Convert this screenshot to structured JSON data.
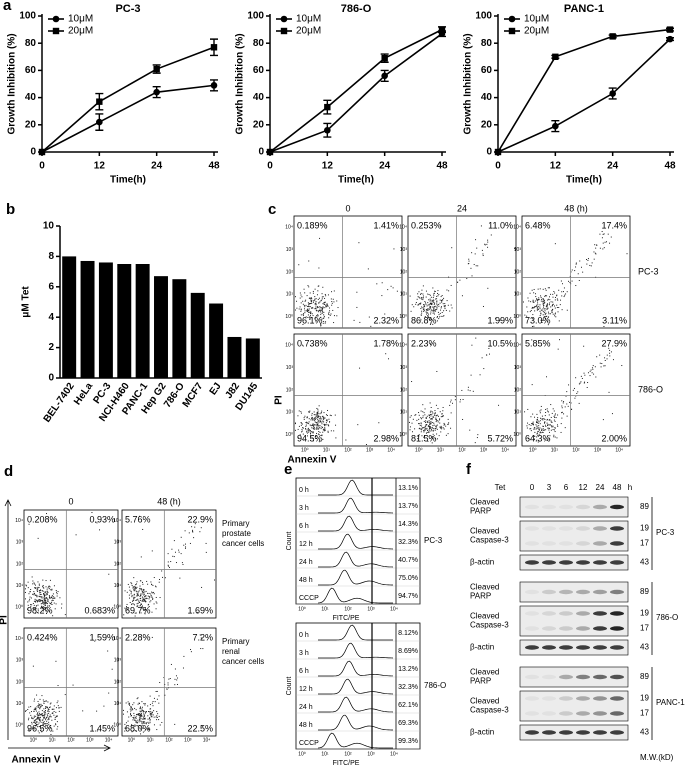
{
  "chart_data": [
    {
      "type": "line",
      "panel_label": "a",
      "title": "PC-3",
      "x_label": "Time(h)",
      "y_label": "Growth Inhibition (%)",
      "categories": [
        "0",
        "12",
        "24",
        "48"
      ],
      "ylim": [
        0,
        100
      ],
      "yticks": [
        0,
        20,
        40,
        60,
        80,
        100
      ],
      "legend": "top-left",
      "series": [
        {
          "name": "10μM",
          "color": "#000000",
          "marker": "circle",
          "values": [
            0,
            22,
            44,
            49
          ],
          "errors": [
            null,
            6,
            4,
            4
          ]
        },
        {
          "name": "20μM",
          "color": "#000000",
          "marker": "square",
          "values": [
            0,
            37,
            61,
            77
          ],
          "errors": [
            null,
            6,
            3,
            6
          ]
        }
      ]
    },
    {
      "type": "line",
      "title": "786-O",
      "x_label": "Time(h)",
      "y_label": "Growth Inhibition (%)",
      "categories": [
        "0",
        "12",
        "24",
        "48"
      ],
      "ylim": [
        0,
        100
      ],
      "yticks": [
        0,
        20,
        40,
        60,
        80,
        100
      ],
      "legend": "top-left",
      "series": [
        {
          "name": "10μM",
          "color": "#000000",
          "marker": "circle",
          "values": [
            0,
            16,
            56,
            87
          ],
          "errors": [
            null,
            5,
            4,
            2
          ]
        },
        {
          "name": "20μM",
          "color": "#000000",
          "marker": "square",
          "values": [
            0,
            33,
            69,
            90
          ],
          "errors": [
            null,
            5,
            3,
            2
          ]
        }
      ]
    },
    {
      "type": "line",
      "title": "PANC-1",
      "x_label": "Time(h)",
      "y_label": "Growth Inhibition (%)",
      "categories": [
        "0",
        "12",
        "24",
        "48"
      ],
      "ylim": [
        0,
        100
      ],
      "yticks": [
        0,
        20,
        40,
        60,
        80,
        100
      ],
      "legend": "top-left",
      "series": [
        {
          "name": "10μM",
          "color": "#000000",
          "marker": "circle",
          "values": [
            0,
            19,
            43,
            83
          ],
          "errors": [
            null,
            4,
            4,
            1
          ]
        },
        {
          "name": "20μM",
          "color": "#000000",
          "marker": "square",
          "values": [
            0,
            70,
            85,
            90
          ],
          "errors": [
            null,
            1,
            1,
            1
          ]
        }
      ]
    },
    {
      "type": "bar",
      "panel_label": "b",
      "y_label": "μM Tet",
      "categories": [
        "BEL-7402",
        "HeLa",
        "PC-3",
        "NCI-H460",
        "PANC-1",
        "Hep G2",
        "786-O",
        "MCF7",
        "EJ",
        "J82",
        "DU145"
      ],
      "values": [
        8.0,
        7.7,
        7.6,
        7.5,
        7.5,
        6.7,
        6.5,
        5.6,
        4.9,
        2.7,
        2.6
      ],
      "color": "#000000",
      "ylim": [
        0,
        10
      ],
      "yticks": [
        0,
        2,
        4,
        6,
        8,
        10
      ]
    }
  ],
  "flow_c": {
    "panel_label": "c",
    "columns": [
      "0",
      "24",
      "48 (h)"
    ],
    "y_label": "PI",
    "x_label": "Annexin V",
    "log_ticks": [
      "10⁰",
      "10¹",
      "10²",
      "10³",
      "10⁴"
    ],
    "rows": [
      {
        "label": "PC-3",
        "plots": [
          [
            "0.189%",
            "1.41%",
            "96.1%",
            "2.32%"
          ],
          [
            "0.253%",
            "11.0%",
            "86.8%",
            "1.99%"
          ],
          [
            "6.48%",
            "17.4%",
            "73.0%",
            "3.11%"
          ]
        ]
      },
      {
        "label": "786-O",
        "plots": [
          [
            "0.738%",
            "1.78%",
            "94.5%",
            "2.98%"
          ],
          [
            "2.23%",
            "10.5%",
            "81.5%",
            "5.72%"
          ],
          [
            "5.85%",
            "27.9%",
            "64.3%",
            "2.00%"
          ]
        ]
      }
    ]
  },
  "flow_d": {
    "panel_label": "d",
    "columns": [
      "0",
      "48 (h)"
    ],
    "y_label": "PI",
    "x_label": "Annexin V",
    "log_ticks": [
      "10⁰",
      "10¹",
      "10²",
      "10³",
      "10⁴"
    ],
    "rows": [
      {
        "label": [
          "Primary",
          "prostate",
          "cancer cells"
        ],
        "plots": [
          [
            "0.208%",
            "0.93%",
            "98.2%",
            "0.683%"
          ],
          [
            "5.76%",
            "22.9%",
            "69.7%",
            "1.69%"
          ]
        ]
      },
      {
        "label": [
          "Primary",
          "renal",
          "cancer cells"
        ],
        "plots": [
          [
            "0.424%",
            "1.59%",
            "96.5%",
            "1.45%"
          ],
          [
            "2.28%",
            "7.2%",
            "68.0%",
            "22.5%"
          ]
        ]
      }
    ]
  },
  "histogram_e": {
    "panel_label": "e",
    "y_label": "Count",
    "x_label": "FITC/PE",
    "log_ticks": [
      "10⁰",
      "10¹",
      "10²",
      "10³",
      "10⁴"
    ],
    "rows": [
      "0 h",
      "3 h",
      "6 h",
      "12 h",
      "24 h",
      "48 h",
      "CCCP"
    ],
    "groups": [
      {
        "label": "PC-3",
        "values": [
          "13.1%",
          "13.7%",
          "14.3%",
          "32.3%",
          "40.7%",
          "75.0%",
          "94.7%"
        ]
      },
      {
        "label": "786-O",
        "values": [
          "8.12%",
          "8.69%",
          "13.2%",
          "32.3%",
          "62.1%",
          "69.3%",
          "99.3%"
        ]
      }
    ]
  },
  "western_f": {
    "panel_label": "f",
    "treatment": "Tet",
    "lanes": [
      "0",
      "3",
      "6",
      "12",
      "24",
      "48"
    ],
    "unit": "h",
    "mw_label": "M.W.(kD)",
    "groups": [
      {
        "label": "PC-3",
        "blots": [
          {
            "label": [
              "Cleaved",
              "PARP"
            ],
            "mw": [
              89
            ]
          },
          {
            "label": [
              "Cleaved",
              "Caspase-3"
            ],
            "mw": [
              19,
              17
            ]
          },
          {
            "label": [
              "β-actin"
            ],
            "mw": [
              43
            ]
          }
        ]
      },
      {
        "label": "786-O",
        "blots": [
          {
            "label": [
              "Cleaved",
              "PARP"
            ],
            "mw": [
              89
            ]
          },
          {
            "label": [
              "Cleaved",
              "Caspase-3"
            ],
            "mw": [
              19,
              17
            ]
          },
          {
            "label": [
              "β-actin"
            ],
            "mw": [
              43
            ]
          }
        ]
      },
      {
        "label": "PANC-1",
        "blots": [
          {
            "label": [
              "Cleaved",
              "PARP"
            ],
            "mw": [
              89
            ]
          },
          {
            "label": [
              "Cleaved",
              "Caspase-3"
            ],
            "mw": [
              19,
              17
            ]
          },
          {
            "label": [
              "β-actin"
            ],
            "mw": [
              43
            ]
          }
        ]
      }
    ]
  }
}
